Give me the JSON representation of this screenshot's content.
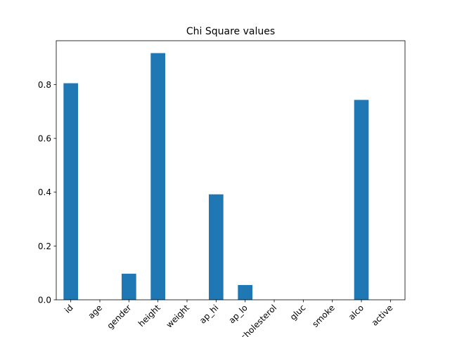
{
  "chart_data": {
    "type": "bar",
    "title": "Chi Square values",
    "xlabel": "",
    "ylabel": "",
    "categories": [
      "id",
      "age",
      "gender",
      "height",
      "weight",
      "ap_hi",
      "ap_lo",
      "cholesterol",
      "gluc",
      "smoke",
      "alco",
      "active"
    ],
    "values": [
      0.805,
      0.0,
      0.097,
      0.917,
      0.0,
      0.392,
      0.055,
      0.0,
      0.0,
      0.0,
      0.743,
      0.0
    ],
    "ylim": [
      0,
      0.963
    ],
    "yticks": [
      "0.0",
      "0.2",
      "0.4",
      "0.6",
      "0.8"
    ],
    "grid": false,
    "legend": "none",
    "bar_color": "#1f77b4",
    "xtick_rotation": "45 degrees"
  }
}
